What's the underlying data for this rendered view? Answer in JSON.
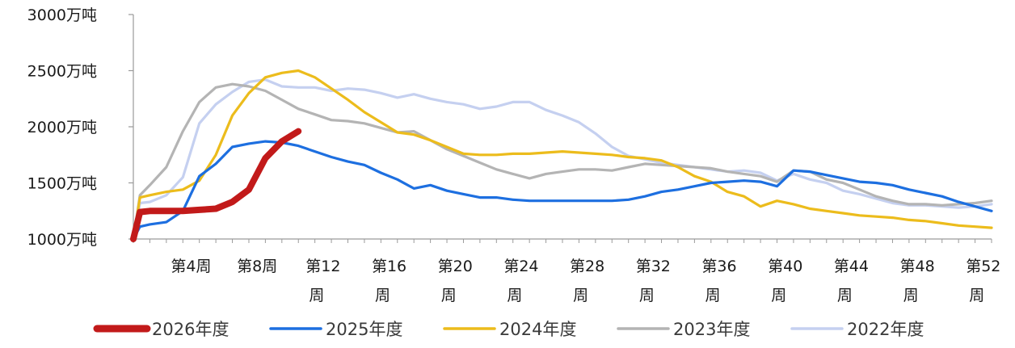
{
  "chart_data": {
    "type": "line",
    "title": "",
    "xlabel": "",
    "ylabel": "",
    "y_unit": "万吨",
    "ylim": [
      1000,
      3000
    ],
    "y_ticks": [
      1000,
      1500,
      2000,
      2500,
      3000
    ],
    "y_tick_labels": [
      "1000万吨",
      "1500万吨",
      "2000万吨",
      "2500万吨",
      "3000万吨"
    ],
    "xlim": [
      1,
      53
    ],
    "x_ticks": [
      {
        "week": 4,
        "line1": "第4周",
        "line2": ""
      },
      {
        "week": 8,
        "line1": "第8周",
        "line2": ""
      },
      {
        "week": 12,
        "line1": "第12",
        "line2": "周"
      },
      {
        "week": 16,
        "line1": "第16",
        "line2": "周"
      },
      {
        "week": 20,
        "line1": "第20",
        "line2": "周"
      },
      {
        "week": 24,
        "line1": "第24",
        "line2": "周"
      },
      {
        "week": 28,
        "line1": "第28",
        "line2": "周"
      },
      {
        "week": 32,
        "line1": "第32",
        "line2": "周"
      },
      {
        "week": 36,
        "line1": "第36",
        "line2": "周"
      },
      {
        "week": 40,
        "line1": "第40",
        "line2": "周"
      },
      {
        "week": 44,
        "line1": "第44",
        "line2": "周"
      },
      {
        "week": 48,
        "line1": "第48",
        "line2": "周"
      },
      {
        "week": 52,
        "line1": "第52",
        "line2": "周"
      }
    ],
    "legend_position": "bottom",
    "series": [
      {
        "name": "2022年度",
        "color": "#c5d0f0",
        "emphasis": false,
        "x": [
          1,
          1.4,
          2,
          3,
          4,
          5,
          6,
          7,
          8,
          9,
          10,
          11,
          12,
          13,
          14,
          15,
          16,
          17,
          18,
          19,
          20,
          21,
          22,
          23,
          24,
          25,
          26,
          27,
          28,
          29,
          30,
          31,
          32,
          33,
          34,
          35,
          36,
          37,
          38,
          39,
          40,
          41,
          42,
          43,
          44,
          45,
          46,
          47,
          48,
          49,
          50,
          51,
          52,
          53
        ],
        "values": [
          1000,
          1320,
          1330,
          1390,
          1550,
          2030,
          2200,
          2310,
          2400,
          2420,
          2360,
          2350,
          2350,
          2320,
          2340,
          2330,
          2300,
          2260,
          2290,
          2250,
          2220,
          2200,
          2160,
          2180,
          2220,
          2220,
          2150,
          2100,
          2040,
          1940,
          1820,
          1740,
          1710,
          1680,
          1660,
          1640,
          1620,
          1600,
          1610,
          1590,
          1520,
          1580,
          1530,
          1500,
          1430,
          1400,
          1360,
          1320,
          1300,
          1300,
          1290,
          1280,
          1290,
          1310
        ]
      },
      {
        "name": "2023年度",
        "color": "#b4b4b4",
        "emphasis": false,
        "x": [
          1,
          1.4,
          2,
          3,
          4,
          5,
          6,
          7,
          8,
          9,
          10,
          11,
          12,
          13,
          14,
          15,
          16,
          17,
          18,
          19,
          20,
          21,
          22,
          23,
          24,
          25,
          26,
          27,
          28,
          29,
          30,
          31,
          32,
          33,
          34,
          35,
          36,
          37,
          38,
          39,
          40,
          41,
          42,
          43,
          44,
          45,
          46,
          47,
          48,
          49,
          50,
          51,
          52,
          53
        ],
        "values": [
          1000,
          1390,
          1480,
          1640,
          1960,
          2220,
          2350,
          2380,
          2360,
          2320,
          2240,
          2160,
          2110,
          2060,
          2050,
          2030,
          1990,
          1950,
          1960,
          1880,
          1800,
          1740,
          1680,
          1620,
          1580,
          1540,
          1580,
          1600,
          1620,
          1620,
          1610,
          1640,
          1670,
          1660,
          1650,
          1640,
          1630,
          1600,
          1580,
          1560,
          1510,
          1610,
          1600,
          1530,
          1500,
          1440,
          1380,
          1340,
          1310,
          1310,
          1300,
          1310,
          1320,
          1340
        ]
      },
      {
        "name": "2024年度",
        "color": "#ecbc1c",
        "emphasis": false,
        "x": [
          1,
          1.4,
          2,
          3,
          4,
          5,
          6,
          7,
          8,
          9,
          10,
          11,
          12,
          13,
          14,
          15,
          16,
          17,
          18,
          19,
          20,
          21,
          22,
          23,
          24,
          25,
          26,
          27,
          28,
          29,
          30,
          31,
          32,
          33,
          34,
          35,
          36,
          37,
          38,
          39,
          40,
          41,
          42,
          43,
          44,
          45,
          46,
          47,
          48,
          49,
          50,
          51,
          52,
          53
        ],
        "values": [
          1000,
          1370,
          1390,
          1420,
          1440,
          1520,
          1750,
          2100,
          2300,
          2440,
          2480,
          2500,
          2440,
          2340,
          2240,
          2130,
          2040,
          1950,
          1930,
          1880,
          1820,
          1760,
          1750,
          1750,
          1760,
          1760,
          1770,
          1780,
          1770,
          1760,
          1750,
          1730,
          1720,
          1700,
          1640,
          1560,
          1510,
          1420,
          1380,
          1290,
          1340,
          1310,
          1270,
          1250,
          1230,
          1210,
          1200,
          1190,
          1170,
          1160,
          1140,
          1120,
          1110,
          1100
        ]
      },
      {
        "name": "2025年度",
        "color": "#1d6fe0",
        "emphasis": false,
        "x": [
          1,
          1.4,
          2,
          3,
          4,
          5,
          6,
          7,
          8,
          9,
          10,
          11,
          12,
          13,
          14,
          15,
          16,
          17,
          18,
          19,
          20,
          21,
          22,
          23,
          24,
          25,
          26,
          27,
          28,
          29,
          30,
          31,
          32,
          33,
          34,
          35,
          36,
          37,
          38,
          39,
          40,
          41,
          42,
          43,
          44,
          45,
          46,
          47,
          48,
          49,
          50,
          51,
          52,
          53
        ],
        "values": [
          1000,
          1110,
          1130,
          1150,
          1250,
          1560,
          1670,
          1820,
          1850,
          1870,
          1860,
          1830,
          1780,
          1730,
          1690,
          1660,
          1590,
          1530,
          1450,
          1480,
          1430,
          1400,
          1370,
          1370,
          1350,
          1340,
          1340,
          1340,
          1340,
          1340,
          1340,
          1350,
          1380,
          1420,
          1440,
          1470,
          1500,
          1510,
          1520,
          1510,
          1470,
          1610,
          1600,
          1570,
          1540,
          1510,
          1500,
          1480,
          1440,
          1410,
          1380,
          1330,
          1290,
          1250
        ]
      },
      {
        "name": "2026年度",
        "color": "#c21a1a",
        "emphasis": true,
        "x": [
          1,
          1.4,
          2,
          3,
          4,
          5,
          6,
          7,
          8,
          9,
          10,
          11
        ],
        "values": [
          1000,
          1240,
          1250,
          1250,
          1250,
          1260,
          1270,
          1330,
          1440,
          1720,
          1870,
          1960
        ]
      }
    ],
    "legend_order": [
      "2026年度",
      "2025年度",
      "2024年度",
      "2023年度",
      "2022年度"
    ]
  }
}
